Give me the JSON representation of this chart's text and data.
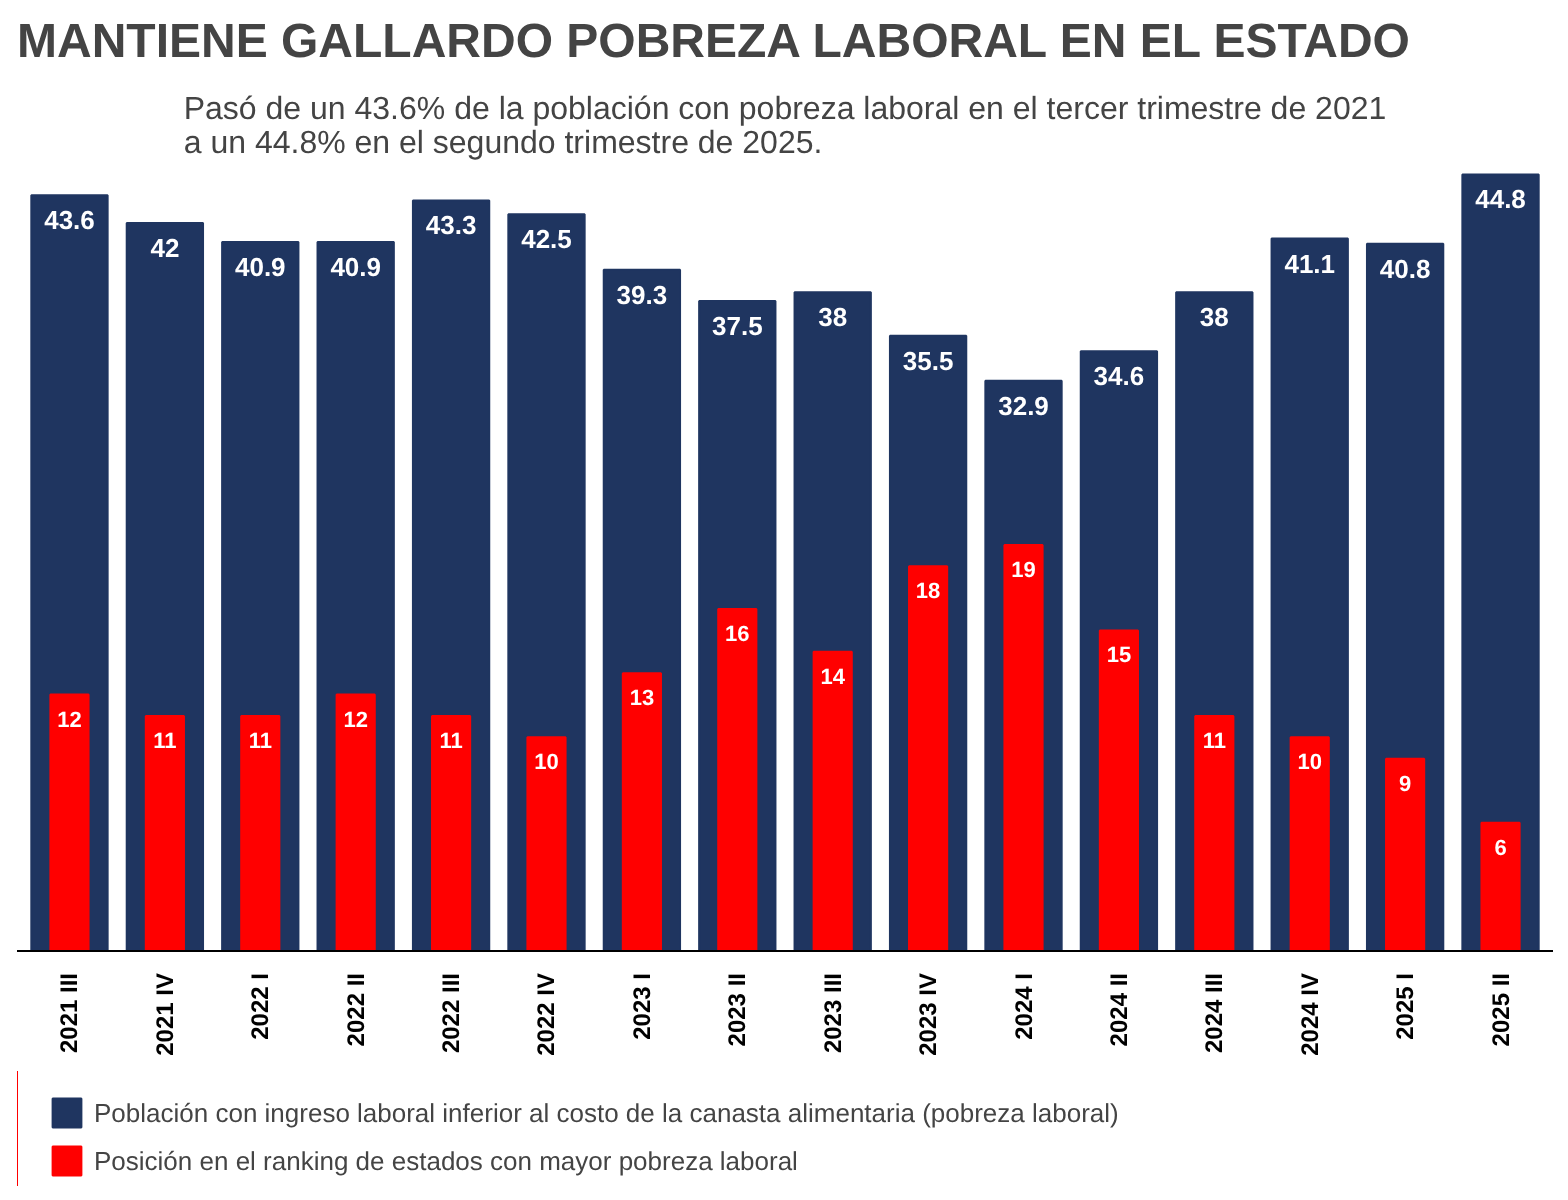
{
  "chart_data": {
    "type": "bar",
    "title": "MANTIENE GALLARDO POBREZA LABORAL EN EL ESTADO",
    "subtitle": "Pasó de un 43.6% de la población con pobreza laboral en el tercer trimestre de 2021\na un 44.8% en el segundo trimestre de 2025.",
    "categories": [
      "2021 III",
      "2021 IV",
      "2022 I",
      "2022 II",
      "2022 III",
      "2022 IV",
      "2023 I",
      "2023 II",
      "2023 III",
      "2023 IV",
      "2024 I",
      "2024 II",
      "2024 III",
      "2024 IV",
      "2025 I",
      "2025 II"
    ],
    "series": [
      {
        "name": "Población con ingreso laboral inferior al costo de la canasta alimentaria (pobreza laboral)",
        "color": "#1f3560",
        "values": [
          43.6,
          42,
          40.9,
          40.9,
          43.3,
          42.5,
          39.3,
          37.5,
          38,
          35.5,
          32.9,
          34.6,
          38,
          41.1,
          40.8,
          44.8
        ]
      },
      {
        "name": "Posición en el ranking de estados con mayor pobreza laboral",
        "color": "#ff0000",
        "axis": "y2",
        "values": [
          12,
          11,
          11,
          12,
          11,
          10,
          13,
          16,
          14,
          18,
          19,
          15,
          11,
          10,
          9,
          6
        ]
      }
    ],
    "ylim": [
      0,
      45
    ],
    "y2lim": [
      0,
      36.5
    ],
    "tick_labels": "x",
    "data_labels": true,
    "grid": false,
    "legend": "bottom"
  }
}
